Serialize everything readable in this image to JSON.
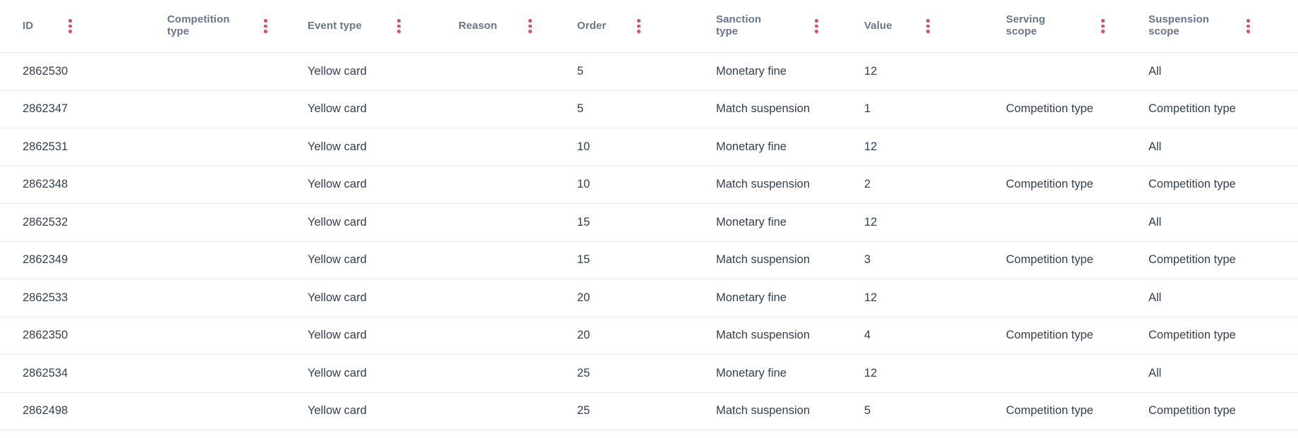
{
  "colors": {
    "menu_dots": "#e14d5e",
    "header_text": "#68768c",
    "body_text": "#333e4e",
    "row_border": "#e6e9ee",
    "background": "#ffffff"
  },
  "table": {
    "columns": [
      {
        "id": "id",
        "label": "ID"
      },
      {
        "id": "competition_type",
        "label": "Competition\ntype"
      },
      {
        "id": "event_type",
        "label": "Event type"
      },
      {
        "id": "reason",
        "label": "Reason"
      },
      {
        "id": "order",
        "label": "Order"
      },
      {
        "id": "sanction_type",
        "label": "Sanction\ntype"
      },
      {
        "id": "value",
        "label": "Value"
      },
      {
        "id": "serving_scope",
        "label": "Serving\nscope"
      },
      {
        "id": "suspension_scope",
        "label": "Suspension\nscope"
      }
    ],
    "menu_icon": "kebab-vertical-icon",
    "rows": [
      {
        "id": "2862530",
        "competition_type": "",
        "event_type": "Yellow card",
        "reason": "",
        "order": "5",
        "sanction_type": "Monetary fine",
        "value": "12",
        "serving_scope": "",
        "suspension_scope": "All"
      },
      {
        "id": "2862347",
        "competition_type": "",
        "event_type": "Yellow card",
        "reason": "",
        "order": "5",
        "sanction_type": "Match suspension",
        "value": "1",
        "serving_scope": "Competition type",
        "suspension_scope": "Competition type"
      },
      {
        "id": "2862531",
        "competition_type": "",
        "event_type": "Yellow card",
        "reason": "",
        "order": "10",
        "sanction_type": "Monetary fine",
        "value": "12",
        "serving_scope": "",
        "suspension_scope": "All"
      },
      {
        "id": "2862348",
        "competition_type": "",
        "event_type": "Yellow card",
        "reason": "",
        "order": "10",
        "sanction_type": "Match suspension",
        "value": "2",
        "serving_scope": "Competition type",
        "suspension_scope": "Competition type"
      },
      {
        "id": "2862532",
        "competition_type": "",
        "event_type": "Yellow card",
        "reason": "",
        "order": "15",
        "sanction_type": "Monetary fine",
        "value": "12",
        "serving_scope": "",
        "suspension_scope": "All"
      },
      {
        "id": "2862349",
        "competition_type": "",
        "event_type": "Yellow card",
        "reason": "",
        "order": "15",
        "sanction_type": "Match suspension",
        "value": "3",
        "serving_scope": "Competition type",
        "suspension_scope": "Competition type"
      },
      {
        "id": "2862533",
        "competition_type": "",
        "event_type": "Yellow card",
        "reason": "",
        "order": "20",
        "sanction_type": "Monetary fine",
        "value": "12",
        "serving_scope": "",
        "suspension_scope": "All"
      },
      {
        "id": "2862350",
        "competition_type": "",
        "event_type": "Yellow card",
        "reason": "",
        "order": "20",
        "sanction_type": "Match suspension",
        "value": "4",
        "serving_scope": "Competition type",
        "suspension_scope": "Competition type"
      },
      {
        "id": "2862534",
        "competition_type": "",
        "event_type": "Yellow card",
        "reason": "",
        "order": "25",
        "sanction_type": "Monetary fine",
        "value": "12",
        "serving_scope": "",
        "suspension_scope": "All"
      },
      {
        "id": "2862498",
        "competition_type": "",
        "event_type": "Yellow card",
        "reason": "",
        "order": "25",
        "sanction_type": "Match suspension",
        "value": "5",
        "serving_scope": "Competition type",
        "suspension_scope": "Competition type"
      }
    ]
  }
}
